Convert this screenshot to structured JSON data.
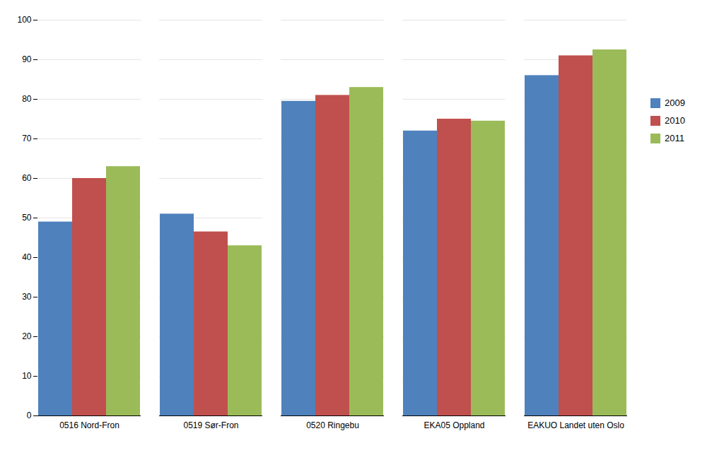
{
  "chart_data": {
    "type": "bar",
    "categories": [
      "0516 Nord-Fron",
      "0519 Sør-Fron",
      "0520 Ringebu",
      "EKA05 Oppland",
      "EAKUO Landet uten Oslo"
    ],
    "series": [
      {
        "name": "2009",
        "color": "#4F81BD",
        "values": [
          49,
          51,
          79.5,
          72,
          86
        ]
      },
      {
        "name": "2010",
        "color": "#C0504D",
        "values": [
          60,
          46.5,
          81,
          75,
          91
        ]
      },
      {
        "name": "2011",
        "color": "#9BBB59",
        "values": [
          63,
          43,
          83,
          74.5,
          92.5
        ]
      }
    ],
    "ylim": [
      0,
      100
    ],
    "yticks": [
      0,
      10,
      20,
      30,
      40,
      50,
      60,
      70,
      80,
      90,
      100
    ],
    "grid": true,
    "legend": "right"
  }
}
